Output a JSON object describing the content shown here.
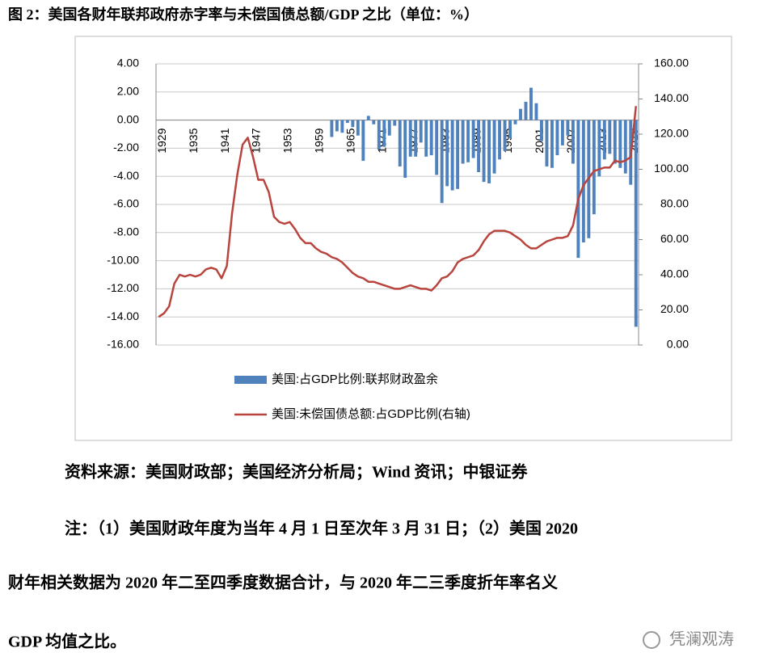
{
  "chart_data": {
    "type": "bar",
    "title": "图 2：美国各财年联邦政府赤字率与未偿国债总额/GDP 之比（单位：%）",
    "categories": [
      "1929",
      null,
      null,
      null,
      null,
      null,
      "1935",
      null,
      null,
      null,
      null,
      null,
      "1941",
      null,
      null,
      null,
      null,
      null,
      "1947",
      null,
      null,
      null,
      null,
      null,
      "1953",
      null,
      null,
      null,
      null,
      null,
      "1959",
      null,
      null,
      null,
      null,
      null,
      "1965",
      null,
      null,
      null,
      null,
      null,
      "1971",
      null,
      null,
      null,
      null,
      null,
      "1977",
      null,
      null,
      null,
      null,
      null,
      "1983",
      null,
      null,
      null,
      null,
      null,
      "1989",
      null,
      null,
      null,
      null,
      null,
      "1995",
      null,
      null,
      null,
      null,
      null,
      "2001",
      null,
      null,
      null,
      null,
      null,
      "2007",
      null,
      null,
      null,
      null,
      null,
      "2013",
      null,
      null,
      null,
      null,
      null,
      "2019",
      null
    ],
    "series": [
      {
        "name": "美国:占GDP比例:联邦财政盈余",
        "type": "bar",
        "color": "#4f81bd",
        "values": [
          null,
          null,
          null,
          null,
          null,
          null,
          null,
          null,
          null,
          null,
          null,
          null,
          null,
          null,
          null,
          null,
          null,
          null,
          null,
          null,
          null,
          null,
          null,
          null,
          null,
          null,
          null,
          null,
          null,
          null,
          null,
          null,
          null,
          -1.2,
          -0.8,
          -0.9,
          -0.2,
          -0.5,
          -1.1,
          -2.9,
          0.3,
          -0.3,
          -2.1,
          -1.9,
          -1.1,
          -0.4,
          -3.3,
          -4.1,
          -2.6,
          -2.6,
          -1.6,
          -2.6,
          -2.5,
          -3.9,
          -5.9,
          -4.7,
          -5.0,
          -4.9,
          -3.1,
          -3.0,
          -2.7,
          -3.7,
          -4.4,
          -4.5,
          -3.8,
          -2.8,
          -2.2,
          -1.3,
          -0.3,
          0.8,
          1.3,
          2.3,
          1.2,
          -1.5,
          -3.3,
          -3.4,
          -2.5,
          -1.8,
          -1.1,
          -3.1,
          -9.8,
          -8.7,
          -8.4,
          -6.7,
          -4.0,
          -2.8,
          -2.4,
          -3.1,
          -3.4,
          -3.8,
          -4.6,
          -14.7
        ]
      },
      {
        "name": "美国:未偿国债总额:占GDP比例(右轴)",
        "type": "line",
        "axis": "y2",
        "color": "#b8443d",
        "values": [
          16,
          18,
          22,
          35,
          40,
          39,
          40,
          39,
          40,
          43,
          44,
          43,
          38,
          45,
          75,
          97,
          114,
          118,
          107,
          94,
          94,
          87,
          73,
          70,
          69,
          70,
          66,
          61,
          58,
          58,
          55,
          53,
          52,
          50,
          49,
          47,
          44,
          41,
          39,
          38,
          36,
          36,
          35,
          34,
          33,
          32,
          32,
          33,
          34,
          33,
          32,
          32,
          31,
          34,
          38,
          39,
          42,
          47,
          49,
          50,
          51,
          54,
          59,
          63,
          65,
          65,
          65,
          64,
          62,
          60,
          57,
          55,
          55,
          57,
          59,
          60,
          61,
          61,
          62,
          68,
          83,
          91,
          95,
          99,
          100,
          101,
          101,
          105,
          104,
          105,
          107,
          136
        ]
      }
    ],
    "ylim": [
      -16,
      4
    ],
    "yticks": [
      {
        "value": -16,
        "label": "-16.00"
      },
      {
        "value": -14,
        "label": "-14.00"
      },
      {
        "value": -12,
        "label": "-12.00"
      },
      {
        "value": -10,
        "label": "-10.00"
      },
      {
        "value": -8,
        "label": "-8.00"
      },
      {
        "value": -6,
        "label": "-6.00"
      },
      {
        "value": -4,
        "label": "-4.00"
      },
      {
        "value": -2,
        "label": "-2.00"
      },
      {
        "value": 0,
        "label": "0.00"
      },
      {
        "value": 2,
        "label": "2.00"
      },
      {
        "value": 4,
        "label": "4.00"
      }
    ],
    "y2lim": [
      0,
      160
    ],
    "y2ticks": [
      {
        "value": 0,
        "label": "0.00"
      },
      {
        "value": 20,
        "label": "20.00"
      },
      {
        "value": 40,
        "label": "40.00"
      },
      {
        "value": 60,
        "label": "60.00"
      },
      {
        "value": 80,
        "label": "80.00"
      },
      {
        "value": 100,
        "label": "100.00"
      },
      {
        "value": 120,
        "label": "120.00"
      },
      {
        "value": 140,
        "label": "140.00"
      },
      {
        "value": 160,
        "label": "160.00"
      }
    ],
    "grid": true,
    "legend": "bottom"
  },
  "source": "资料来源：美国财政部；美国经济分析局；Wind 资讯；中银证券",
  "notes": [
    "注：（1）美国财政年度为当年 4 月 1 日至次年 3 月 31 日；（2）美国 2020",
    "财年相关数据为 2020 年二至四季度数据合计，与 2020 年二三季度折年率名义",
    "GDP 均值之比。"
  ],
  "watermark": "凭澜观涛"
}
